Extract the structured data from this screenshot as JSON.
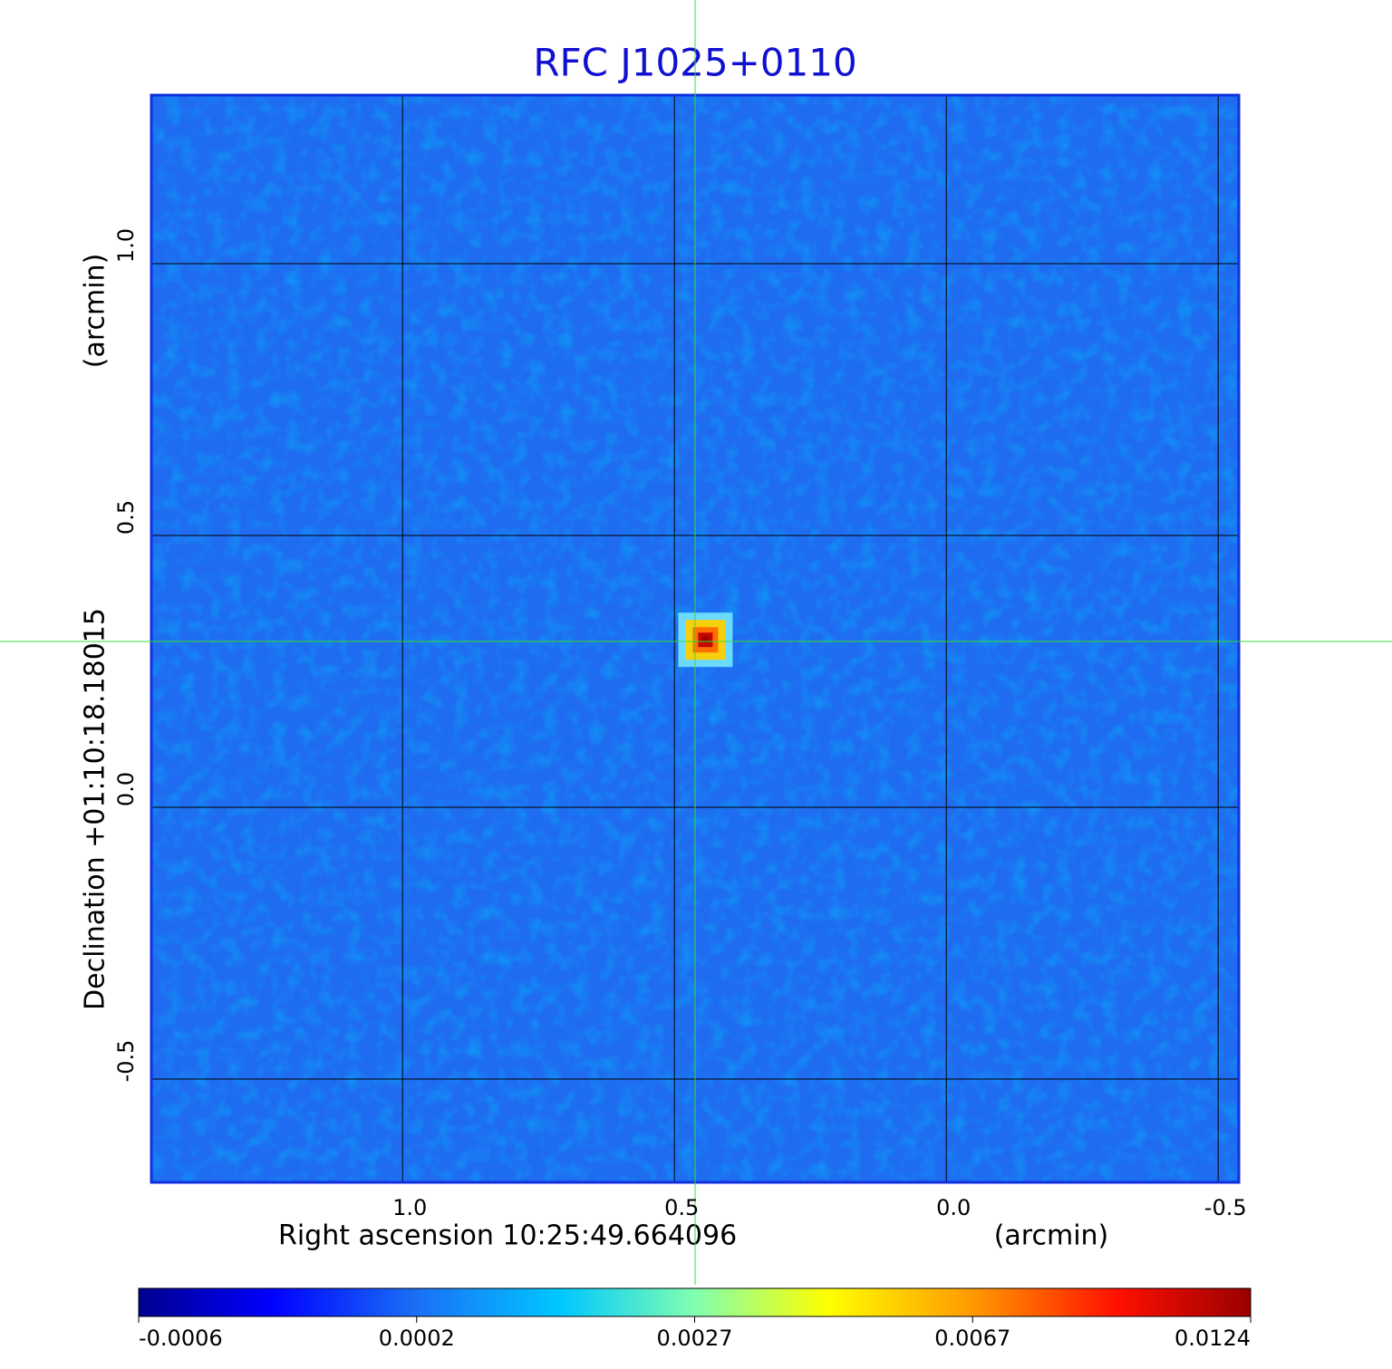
{
  "chart_data": {
    "type": "image",
    "title": "RFC J1025+0110",
    "xlabel": "Right ascension  10:25:49.664096",
    "xunit": "(arcmin)",
    "ylabel": "Declination  +01:10:18.18015",
    "yunit": "(arcmin)",
    "xlim": [
      1.462,
      -0.538
    ],
    "ylim": [
      -0.69,
      1.31
    ],
    "xticks": [
      {
        "value": 1,
        "label": "1.0"
      },
      0.5,
      {
        "value": 0,
        "label": "0.0"
      },
      -0.5
    ],
    "yticks": [
      -0.5,
      {
        "value": 0,
        "label": "0.0"
      },
      0.5,
      {
        "value": 1,
        "label": "1.0"
      }
    ],
    "grid": true,
    "source": {
      "x": 0.443,
      "y": 0.308
    },
    "crosshair": {
      "x": 0.462,
      "y": 0.305
    },
    "colorbar_ticks": [
      -0.0006,
      0.0002,
      0.0027,
      0.0067,
      0.0124
    ]
  }
}
